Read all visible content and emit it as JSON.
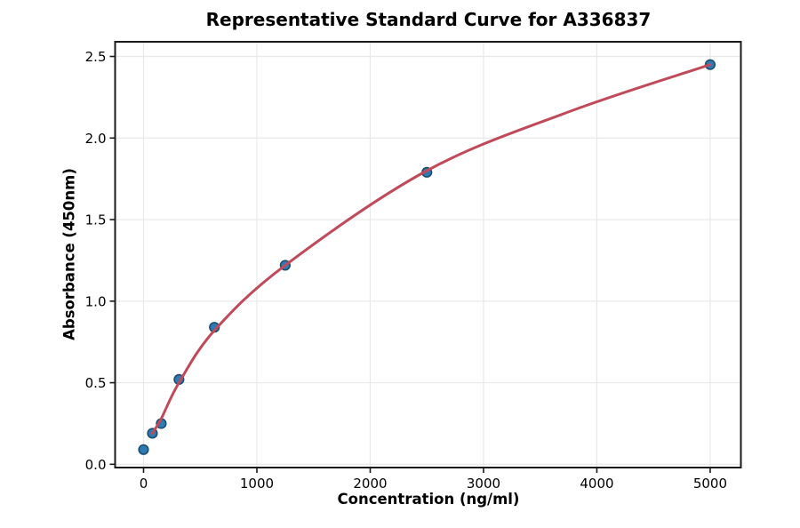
{
  "chart_data": {
    "type": "scatter",
    "title": "Representative Standard Curve for A336837",
    "xlabel": "Concentration (ng/ml)",
    "ylabel": "Absorbance (450nm)",
    "xlim": [
      -251,
      5271
    ],
    "ylim": [
      -0.02,
      2.59
    ],
    "grid": true,
    "legend": "none",
    "xticks": [
      0,
      1000,
      2000,
      3000,
      4000,
      5000
    ],
    "xtick_labels": [
      "0",
      "1000",
      "2000",
      "3000",
      "4000",
      "5000"
    ],
    "yticks": [
      0.0,
      0.5,
      1.0,
      1.5,
      2.0,
      2.5
    ],
    "ytick_labels": [
      "0.0",
      "0.5",
      "1.0",
      "1.5",
      "2.0",
      "2.5"
    ],
    "series": [
      {
        "name": "standard-points",
        "type": "scatter",
        "x": [
          0,
          78.125,
          156.25,
          312.5,
          625,
          1250,
          2500,
          5000
        ],
        "y": [
          0.09,
          0.19,
          0.25,
          0.52,
          0.84,
          1.22,
          1.79,
          2.45
        ],
        "marker_fill": "#2d7bb2",
        "marker_edge": "#1c4d6e"
      },
      {
        "name": "4pl-fit-curve",
        "type": "line",
        "x": [
          78.125,
          156.25,
          312.5,
          625,
          1250,
          2500,
          3750,
          5000
        ],
        "y": [
          0.19,
          0.28,
          0.5,
          0.82,
          1.22,
          1.8,
          2.16,
          2.45
        ],
        "color": "#c04a5a"
      }
    ],
    "colors": {
      "grid": "#e8e8e8",
      "spine": "#1a1a1a",
      "background": "#ffffff"
    }
  }
}
